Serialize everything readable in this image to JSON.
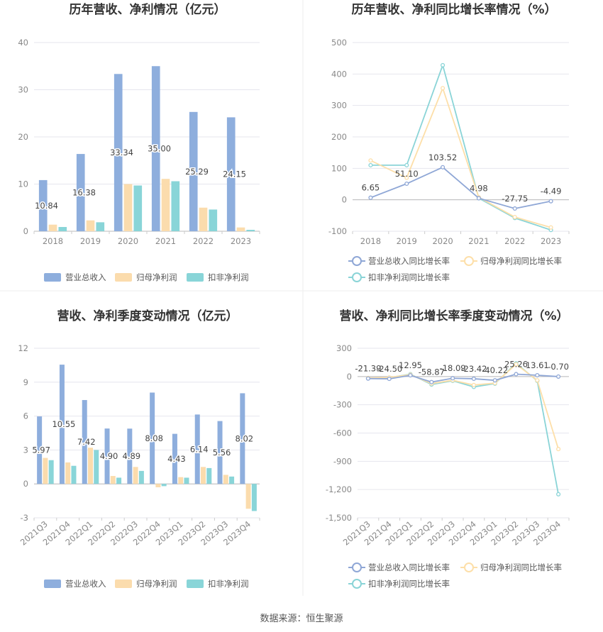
{
  "colors": {
    "revenue": "#8eaedd",
    "net_profit": "#fbdcad",
    "deducted_profit": "#89d5d8",
    "revenue_line": "#8fa7d6",
    "net_profit_line": "#fddfa9",
    "deducted_profit_line": "#8ad4d7",
    "grid": "#e6e6ee",
    "axis": "#cccccc",
    "divider": "#eeeeee"
  },
  "source_text": "数据来源：恒生聚源",
  "chart_data": [
    {
      "type": "bar",
      "title": "历年营收、净利情况（亿元）",
      "categories": [
        "2018",
        "2019",
        "2020",
        "2021",
        "2022",
        "2023"
      ],
      "ylim": [
        0,
        40
      ],
      "yticks": [
        "0",
        "10",
        "20",
        "30",
        "40"
      ],
      "grid": true,
      "legend_position": "bottom",
      "series": [
        {
          "name": "营业总收入",
          "values": [
            10.84,
            16.38,
            33.34,
            35.0,
            25.29,
            24.15
          ],
          "labels": [
            "10.84",
            "16.38",
            "33.34",
            "35.00",
            "25.29",
            "24.15"
          ]
        },
        {
          "name": "归母净利润",
          "values": [
            1.4,
            2.3,
            10.0,
            11.1,
            5.0,
            0.8
          ]
        },
        {
          "name": "扣非净利润",
          "values": [
            0.9,
            1.9,
            9.7,
            10.6,
            4.6,
            0.3
          ]
        }
      ]
    },
    {
      "type": "line",
      "title": "历年营收、净利同比增长率情况（%）",
      "categories": [
        "2018",
        "2019",
        "2020",
        "2021",
        "2022",
        "2023"
      ],
      "ylim": [
        -100,
        500
      ],
      "yticks": [
        "-100",
        "0",
        "100",
        "200",
        "300",
        "400",
        "500"
      ],
      "grid": true,
      "legend_position": "bottom",
      "series": [
        {
          "name": "营业总收入同比增长率",
          "values": [
            6.65,
            51.1,
            103.52,
            4.98,
            -27.75,
            -4.49
          ],
          "labels": [
            "6.65",
            "51.10",
            "103.52",
            "4.98",
            "-27.75",
            "-4.49"
          ]
        },
        {
          "name": "归母净利润同比增长率",
          "values": [
            125,
            70,
            355,
            8,
            -55,
            -88
          ]
        },
        {
          "name": "扣非净利润同比增长率",
          "values": [
            110,
            110,
            428,
            5,
            -58,
            -96
          ]
        }
      ]
    },
    {
      "type": "bar",
      "title": "营收、净利季度变动情况（亿元）",
      "categories": [
        "2021Q3",
        "2021Q4",
        "2022Q1",
        "2022Q2",
        "2022Q3",
        "2022Q4",
        "2023Q1",
        "2023Q2",
        "2023Q3",
        "2023Q4"
      ],
      "ylim": [
        -3,
        12
      ],
      "yticks": [
        "-3",
        "0",
        "3",
        "6",
        "9",
        "12"
      ],
      "grid": true,
      "legend_position": "bottom",
      "series": [
        {
          "name": "营业总收入",
          "values": [
            5.97,
            10.55,
            7.42,
            4.9,
            4.89,
            8.08,
            4.43,
            6.14,
            5.56,
            8.02
          ],
          "labels": [
            "5.97",
            "10.55",
            "7.42",
            "4.90",
            "4.89",
            "8.08",
            "4.43",
            "6.14",
            "5.56",
            "8.02"
          ]
        },
        {
          "name": "归母净利润",
          "values": [
            2.3,
            1.9,
            3.2,
            0.7,
            1.5,
            -0.3,
            0.6,
            1.5,
            0.8,
            -2.2
          ]
        },
        {
          "name": "扣非净利润",
          "values": [
            2.1,
            1.6,
            3.0,
            0.55,
            1.15,
            -0.2,
            0.55,
            1.4,
            0.65,
            -2.4
          ]
        }
      ]
    },
    {
      "type": "line",
      "title": "营收、净利同比增长率季度变动情况（%）",
      "categories": [
        "2021Q3",
        "2021Q4",
        "2022Q1",
        "2022Q2",
        "2022Q3",
        "2022Q4",
        "2023Q1",
        "2023Q2",
        "2023Q3",
        "2023Q4"
      ],
      "ylim": [
        -1500,
        300
      ],
      "yticks": [
        "-1,500",
        "-1,200",
        "-900",
        "-600",
        "-300",
        "0",
        "300"
      ],
      "grid": true,
      "legend_position": "bottom",
      "series": [
        {
          "name": "营业总收入同比增长率",
          "values": [
            -21.39,
            -24.5,
            12.95,
            -58.87,
            -18.09,
            -23.42,
            -40.22,
            25.26,
            13.61,
            -0.7
          ],
          "labels": [
            "-21.39",
            "-24.50",
            "12.95",
            "-58.87",
            "-18.09",
            "-23.42",
            "-40.22",
            "25.26",
            "13.61",
            "-0.70"
          ]
        },
        {
          "name": "归母净利润同比增长率",
          "values": [
            -15,
            -10,
            20,
            -75,
            -40,
            -90,
            -70,
            130,
            -40,
            -770
          ]
        },
        {
          "name": "扣非净利润同比增长率",
          "values": [
            -18,
            -12,
            25,
            -85,
            -45,
            -110,
            -75,
            140,
            -45,
            -1250
          ]
        }
      ]
    }
  ]
}
